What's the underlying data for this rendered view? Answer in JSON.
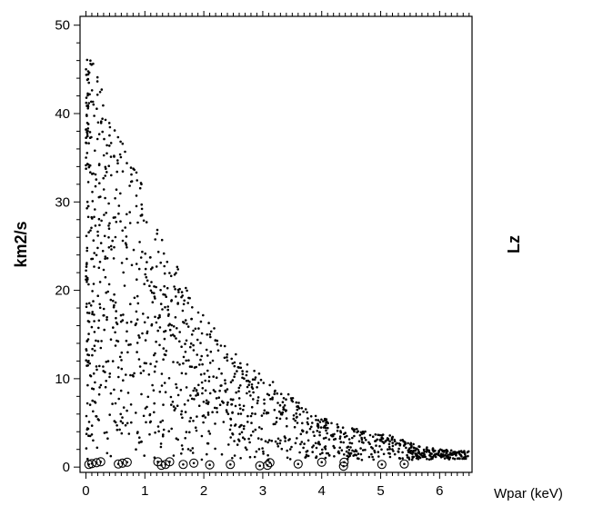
{
  "chart_data": {
    "type": "scatter",
    "title": "",
    "xlabel": "Wpar (keV)",
    "ylabel": "km2/s",
    "right_label": "Lz",
    "xlim": [
      -0.1,
      6.55
    ],
    "ylim": [
      -0.6,
      51
    ],
    "x_ticks": [
      "0",
      "1",
      "2",
      "3",
      "4",
      "5",
      "6"
    ],
    "y_ticks": [
      "0",
      "10",
      "20",
      "30",
      "40",
      "50"
    ],
    "grid": false,
    "series": [
      {
        "marker": "dot",
        "envelope": [
          [
            0.0,
            47.5
          ],
          [
            0.3,
            43.0
          ],
          [
            0.6,
            37.0
          ],
          [
            0.9,
            33.0
          ],
          [
            1.2,
            27.0
          ],
          [
            1.5,
            23.5
          ],
          [
            1.8,
            19.0
          ],
          [
            2.1,
            16.5
          ],
          [
            2.4,
            13.5
          ],
          [
            2.7,
            12.0
          ],
          [
            3.0,
            10.5
          ],
          [
            3.3,
            9.0
          ],
          [
            3.6,
            7.5
          ],
          [
            3.9,
            6.0
          ],
          [
            4.2,
            5.0
          ],
          [
            4.5,
            4.5
          ],
          [
            4.8,
            4.0
          ],
          [
            5.1,
            3.8
          ],
          [
            5.4,
            3.0
          ],
          [
            5.7,
            2.3
          ],
          [
            6.0,
            2.0
          ],
          [
            6.5,
            1.8
          ]
        ],
        "count": 1400
      },
      {
        "marker": "circle-dot",
        "points": [
          [
            0.05,
            0.3
          ],
          [
            0.1,
            0.4
          ],
          [
            0.18,
            0.5
          ],
          [
            0.25,
            0.6
          ],
          [
            0.55,
            0.35
          ],
          [
            0.62,
            0.45
          ],
          [
            0.7,
            0.55
          ],
          [
            1.22,
            0.6
          ],
          [
            1.28,
            0.2
          ],
          [
            1.35,
            0.3
          ],
          [
            1.42,
            0.6
          ],
          [
            1.65,
            0.3
          ],
          [
            1.83,
            0.45
          ],
          [
            2.1,
            0.25
          ],
          [
            2.45,
            0.3
          ],
          [
            2.95,
            0.15
          ],
          [
            3.08,
            0.2
          ],
          [
            3.12,
            0.5
          ],
          [
            3.6,
            0.35
          ],
          [
            4.0,
            0.55
          ],
          [
            4.37,
            0.1
          ],
          [
            4.38,
            0.55
          ],
          [
            5.02,
            0.3
          ],
          [
            5.4,
            0.35
          ]
        ]
      }
    ]
  }
}
